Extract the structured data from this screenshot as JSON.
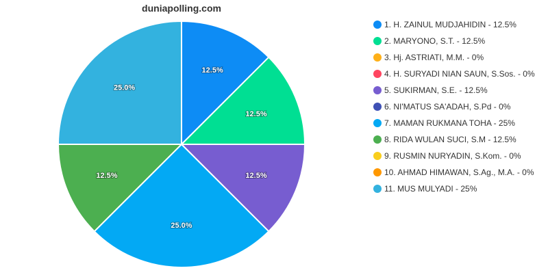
{
  "chart_data": {
    "type": "pie",
    "title": "duniapolling.com",
    "legend_position": "right",
    "slices": [
      {
        "label": "1. H. ZAINUL MUDJAHIDIN - 12.5%",
        "value": 12.5,
        "display": "12.5%",
        "color": "#0d8cf5"
      },
      {
        "label": "2. MARYONO, S.T. - 12.5%",
        "value": 12.5,
        "display": "12.5%",
        "color": "#00df93"
      },
      {
        "label": "3. Hj. ASTRIATI, M.M. - 0%",
        "value": 0,
        "display": "",
        "color": "#feb019"
      },
      {
        "label": "4. H. SURYADI NIAN SAUN, S.Sos. - 0%",
        "value": 0,
        "display": "",
        "color": "#ff4560"
      },
      {
        "label": "5. SUKIRMAN, S.E. - 12.5%",
        "value": 12.5,
        "display": "12.5%",
        "color": "#775dd0"
      },
      {
        "label": "6. NI'MATUS SA'ADAH, S.Pd - 0%",
        "value": 0,
        "display": "",
        "color": "#3f51b5"
      },
      {
        "label": "7. MAMAN RUKMANA TOHA - 25%",
        "value": 25,
        "display": "25.0%",
        "color": "#03a9f4"
      },
      {
        "label": "8. RIDA WULAN SUCI, S.M - 12.5%",
        "value": 12.5,
        "display": "12.5%",
        "color": "#4caf50"
      },
      {
        "label": "9. RUSMIN NURYADIN, S.Kom. - 0%",
        "value": 0,
        "display": "",
        "color": "#f9ce1d"
      },
      {
        "label": "10. AHMAD HIMAWAN, S.Ag., M.A. - 0%",
        "value": 0,
        "display": "",
        "color": "#ff9800"
      },
      {
        "label": "11. MUS MULYADI - 25%",
        "value": 25,
        "display": "25.0%",
        "color": "#33b2df"
      }
    ]
  }
}
